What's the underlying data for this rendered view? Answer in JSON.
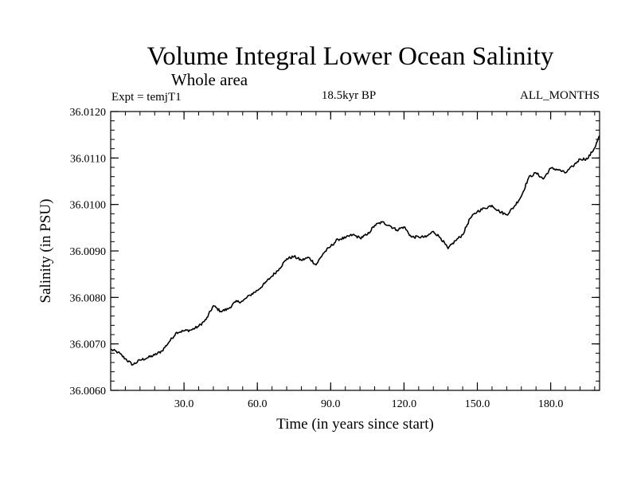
{
  "chart_data": {
    "type": "line",
    "title": "Volume Integral Lower Ocean Salinity",
    "subtitle": "Whole area",
    "annotations": {
      "left": "Expt = temjT1",
      "center": "18.5kyr BP",
      "right": "ALL_MONTHS"
    },
    "xlabel": "Time (in years since start)",
    "ylabel": "Salinity (in PSU)",
    "xlim": [
      0,
      200
    ],
    "ylim": [
      36.006,
      36.012
    ],
    "x_ticks": [
      30,
      60,
      90,
      120,
      150,
      180
    ],
    "x_tick_labels": [
      "30.0",
      "60.0",
      "90.0",
      "120.0",
      "150.0",
      "180.0"
    ],
    "y_ticks": [
      36.006,
      36.007,
      36.008,
      36.009,
      36.01,
      36.011,
      36.012
    ],
    "y_tick_labels": [
      "36.0060",
      "36.0070",
      "36.0080",
      "36.0090",
      "36.0100",
      "36.0110",
      "36.0120"
    ],
    "grid": false,
    "series": [
      {
        "name": "Salinity",
        "x": [
          0,
          3,
          6,
          9,
          12,
          15,
          18,
          21,
          24,
          27,
          30,
          33,
          36,
          39,
          42,
          45,
          48,
          51,
          54,
          57,
          60,
          63,
          66,
          69,
          72,
          75,
          78,
          81,
          84,
          87,
          90,
          93,
          96,
          99,
          102,
          105,
          108,
          111,
          114,
          117,
          120,
          123,
          126,
          129,
          132,
          135,
          138,
          141,
          144,
          147,
          150,
          153,
          156,
          159,
          162,
          165,
          168,
          171,
          174,
          177,
          180,
          183,
          186,
          189,
          192,
          195,
          198,
          200
        ],
        "values": [
          36.00688,
          36.00682,
          36.00668,
          36.00655,
          36.00665,
          36.0067,
          36.00676,
          36.00685,
          36.00705,
          36.00725,
          36.00728,
          36.0073,
          36.00738,
          36.00752,
          36.00782,
          36.0077,
          36.00775,
          36.0079,
          36.00792,
          36.00805,
          36.00815,
          36.0083,
          36.00846,
          36.00862,
          36.00883,
          36.00888,
          36.0088,
          36.00886,
          36.0087,
          36.00895,
          36.0091,
          36.00925,
          36.00928,
          36.00935,
          36.00928,
          36.00935,
          36.00955,
          36.00962,
          36.00955,
          36.00945,
          36.00952,
          36.0093,
          36.0093,
          36.0093,
          36.00942,
          36.00928,
          36.00905,
          36.00922,
          36.00935,
          36.0097,
          36.00985,
          36.00992,
          36.00998,
          36.00985,
          36.00978,
          36.00995,
          36.01018,
          36.01058,
          36.01068,
          36.01055,
          36.01078,
          36.01075,
          36.01068,
          36.01082,
          36.01098,
          36.01098,
          36.01122,
          36.01148
        ]
      }
    ]
  }
}
